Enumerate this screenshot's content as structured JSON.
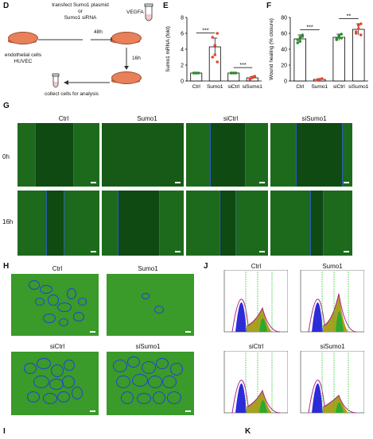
{
  "panels": {
    "d": "D",
    "e": "E",
    "f": "F",
    "g": "G",
    "h": "H",
    "i": "I",
    "j": "J",
    "k": "K"
  },
  "schematic": {
    "transfect_line1": "transfect Sumo1 plasmid",
    "transfect_line2": "or",
    "transfect_line3": "Sumo1 siRNA",
    "time_48h": "48h",
    "vegfa": "VEGFA",
    "time_16h": "16h",
    "cells_line1": "endothelial cells",
    "cells_line2": "HUVEC",
    "collect": "collect cells for analysis"
  },
  "groups": [
    "Ctrl",
    "Sumo1",
    "siCtrl",
    "siSumo1"
  ],
  "scratch_rows": [
    "0h",
    "16h"
  ],
  "flow_titles": [
    "Ctrl",
    "Sumo1",
    "siCtrl",
    "siSumo1"
  ],
  "colors": {
    "ctrl_bar": "#2e8b2e",
    "sumo1_bar": "#e8452a",
    "sig": "#000000"
  },
  "chart_data": [
    {
      "type": "bar",
      "panel": "E",
      "ylabel": "Sumo1 mRNA (fold)",
      "categories": [
        "Ctrl",
        "Sumo1",
        "siCtrl",
        "siSumo1"
      ],
      "values": [
        1.0,
        4.3,
        1.0,
        0.4
      ],
      "errors": [
        0.05,
        1.1,
        0.05,
        0.15
      ],
      "points": [
        [
          1.0,
          1.0,
          1.0,
          1.0,
          1.0
        ],
        [
          3.0,
          4.5,
          6.0,
          5.5,
          3.3,
          2.4
        ],
        [
          1.0,
          1.0,
          1.0,
          1.0,
          1.0
        ],
        [
          0.3,
          0.5,
          0.6,
          0.2,
          0.4
        ]
      ],
      "ylim": [
        0,
        8
      ],
      "yticks": [
        "0",
        "2",
        "4",
        "6",
        "8"
      ],
      "significance": [
        "***",
        "***"
      ]
    },
    {
      "type": "bar",
      "panel": "F",
      "ylabel": "Wound healing (% closure)",
      "categories": [
        "Ctrl",
        "Sumo1",
        "siCtrl",
        "siSumo1"
      ],
      "values": [
        53,
        2,
        55,
        65
      ],
      "errors": [
        5,
        1,
        4,
        7
      ],
      "points": [
        [
          48,
          55,
          58,
          52,
          50,
          56
        ],
        [
          1,
          2,
          3,
          1,
          2
        ],
        [
          52,
          57,
          59,
          53,
          55,
          54
        ],
        [
          60,
          70,
          72,
          62,
          66,
          58
        ]
      ],
      "ylim": [
        0,
        80
      ],
      "yticks": [
        "0",
        "20",
        "40",
        "60",
        "80"
      ],
      "significance": [
        "***",
        "**"
      ]
    }
  ]
}
